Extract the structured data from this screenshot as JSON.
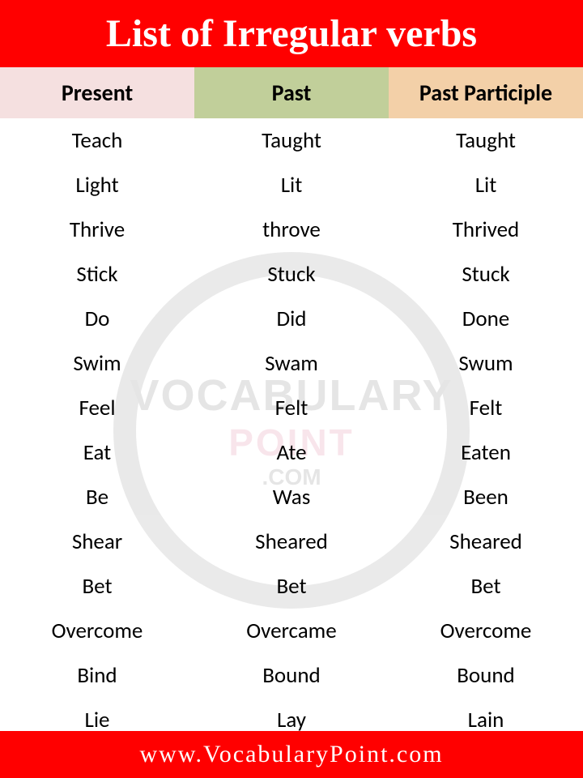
{
  "title": "List of Irregular verbs",
  "footer": "www.VocabularyPoint.com",
  "columns": [
    {
      "label": "Present",
      "bg": "#f5e0e0"
    },
    {
      "label": "Past",
      "bg": "#c1cf9a"
    },
    {
      "label": "Past Participle",
      "bg": "#f3d0a8"
    }
  ],
  "rows": [
    {
      "present": "Teach",
      "past": "Taught",
      "pp": "Taught"
    },
    {
      "present": "Light",
      "past": "Lit",
      "pp": "Lit"
    },
    {
      "present": "Thrive",
      "past": "throve",
      "pp": "Thrived"
    },
    {
      "present": "Stick",
      "past": "Stuck",
      "pp": "Stuck"
    },
    {
      "present": "Do",
      "past": "Did",
      "pp": "Done"
    },
    {
      "present": "Swim",
      "past": "Swam",
      "pp": "Swum"
    },
    {
      "present": "Feel",
      "past": "Felt",
      "pp": "Felt"
    },
    {
      "present": "Eat",
      "past": "Ate",
      "pp": "Eaten"
    },
    {
      "present": "Be",
      "past": "Was",
      "pp": "Been"
    },
    {
      "present": "Shear",
      "past": "Sheared",
      "pp": "Sheared"
    },
    {
      "present": "Bet",
      "past": "Bet",
      "pp": "Bet"
    },
    {
      "present": "Overcome",
      "past": "Overcame",
      "pp": "Overcome"
    },
    {
      "present": "Bind",
      "past": "Bound",
      "pp": "Bound"
    },
    {
      "present": "Lie",
      "past": "Lay",
      "pp": "Lain"
    }
  ],
  "watermark": {
    "line1": "VOCABULARY",
    "line2": "POINT",
    "line3": ".COM"
  },
  "styles": {
    "header_bg": "#ff0000",
    "header_color": "#ffffff",
    "footer_bg": "#ff0000",
    "footer_color": "#ffffff",
    "cell_color": "#000000",
    "body_bg": "#ffffff"
  }
}
